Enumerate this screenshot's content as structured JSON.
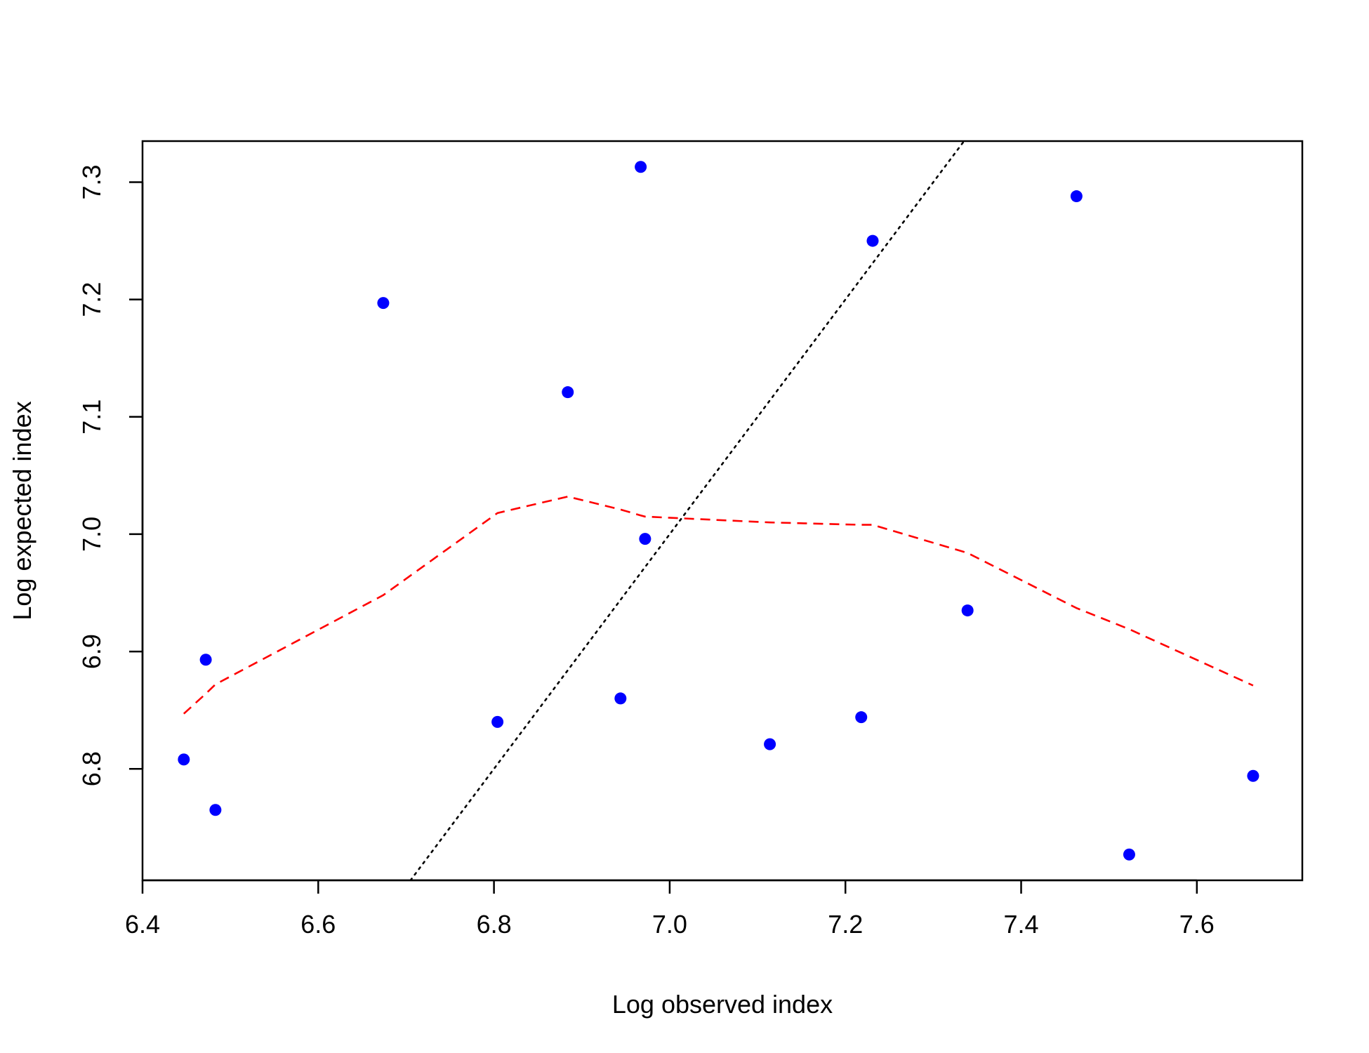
{
  "chart_data": {
    "type": "scatter",
    "title": "",
    "xlabel": "Log observed index",
    "ylabel": "Log expected index",
    "xlim": [
      6.4,
      7.72
    ],
    "ylim": [
      6.705,
      7.335
    ],
    "xticks": [
      6.4,
      6.6,
      6.8,
      7.0,
      7.2,
      7.4,
      7.6
    ],
    "xtick_labels": [
      "6.4",
      "6.6",
      "6.8",
      "7.0",
      "7.2",
      "7.4",
      "7.6"
    ],
    "yticks": [
      6.8,
      6.9,
      7.0,
      7.1,
      7.2,
      7.3
    ],
    "ytick_labels": [
      "6.8",
      "6.9",
      "7.0",
      "7.1",
      "7.2",
      "7.3"
    ],
    "grid": false,
    "legend": "none",
    "series": [
      {
        "kind": "points",
        "color": "#0000ff",
        "marker": "filled-circle",
        "x": [
          6.447,
          6.472,
          6.483,
          6.674,
          6.804,
          6.884,
          6.944,
          6.967,
          6.972,
          7.114,
          7.218,
          7.231,
          7.339,
          7.463,
          7.523,
          7.664
        ],
        "y": [
          6.808,
          6.893,
          6.765,
          7.197,
          6.84,
          7.121,
          6.86,
          7.313,
          6.996,
          6.821,
          6.844,
          7.25,
          6.935,
          7.288,
          6.727,
          6.794
        ]
      },
      {
        "kind": "line",
        "style": "dashed",
        "color": "#ff0000",
        "x": [
          6.447,
          6.472,
          6.483,
          6.674,
          6.804,
          6.884,
          6.944,
          6.967,
          6.972,
          7.114,
          7.218,
          7.231,
          7.339,
          7.463,
          7.523,
          7.664
        ],
        "y": [
          6.847,
          6.864,
          6.872,
          6.948,
          7.018,
          7.032,
          7.021,
          7.016,
          7.015,
          7.01,
          7.008,
          7.008,
          6.984,
          6.937,
          6.919,
          6.871
        ]
      },
      {
        "kind": "line",
        "style": "dotted",
        "color": "#000000",
        "x": [
          6.705,
          7.335
        ],
        "y": [
          6.705,
          7.335
        ]
      }
    ]
  }
}
